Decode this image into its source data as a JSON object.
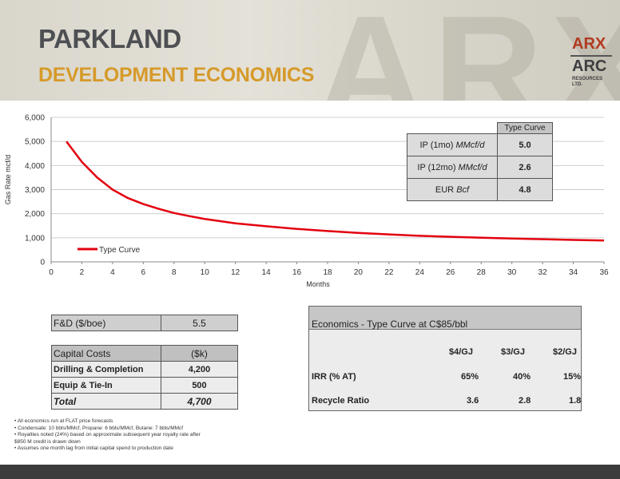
{
  "header": {
    "title": "PARKLAND",
    "subtitle": "DEVELOPMENT ECONOMICS",
    "logo_top": "ARX",
    "logo_main": "ARC",
    "logo_small": "RESOURCES LTD."
  },
  "chart_data": {
    "type": "line",
    "xlabel": "Months",
    "ylabel": "Gas Rate mcf/d",
    "xlim": [
      0,
      36
    ],
    "ylim": [
      0,
      6000
    ],
    "x_ticks": [
      "0",
      "2",
      "4",
      "6",
      "8",
      "10",
      "12",
      "14",
      "16",
      "18",
      "20",
      "22",
      "24",
      "26",
      "28",
      "30",
      "32",
      "34",
      "36"
    ],
    "y_ticks": [
      "0",
      "1,000",
      "2,000",
      "3,000",
      "4,000",
      "5,000",
      "6,000"
    ],
    "grid": "horizontal",
    "legend": "bottom-left",
    "series": [
      {
        "name": "Type Curve",
        "color": "#e3000f",
        "x": [
          1,
          2,
          3,
          4,
          5,
          6,
          7,
          8,
          9,
          10,
          12,
          14,
          16,
          18,
          20,
          22,
          24,
          26,
          28,
          30,
          32,
          34,
          36
        ],
        "y": [
          5000,
          4150,
          3500,
          3000,
          2650,
          2400,
          2200,
          2030,
          1900,
          1780,
          1600,
          1480,
          1370,
          1280,
          1200,
          1140,
          1080,
          1040,
          1000,
          970,
          940,
          910,
          890
        ]
      }
    ]
  },
  "type_curve_table": {
    "header": "Type Curve",
    "rows": [
      {
        "label": "IP (1mo)",
        "unit": "MMcf/d",
        "value": "5.0"
      },
      {
        "label": "IP (12mo)",
        "unit": "MMcf/d",
        "value": "2.6"
      },
      {
        "label": "EUR",
        "unit": "Bcf",
        "value": "4.8"
      }
    ]
  },
  "fd_table": {
    "label": "F&D ($/boe)",
    "value": "5.5"
  },
  "capital_table": {
    "header": {
      "label": "Capital Costs",
      "unit": "($k)"
    },
    "rows": [
      {
        "label": "Drilling & Completion",
        "value": "4,200"
      },
      {
        "label": "Equip & Tie-In",
        "value": "500"
      }
    ],
    "total": {
      "label": "Total",
      "value": "4,700"
    }
  },
  "economics": {
    "title": "Economics - Type Curve at C$85/bbl",
    "columns": [
      "$4/GJ",
      "$3/GJ",
      "$2/GJ"
    ],
    "irr": {
      "label": "IRR (% AT)",
      "values": [
        "65%",
        "40%",
        "15%"
      ]
    },
    "recycle": {
      "label": "Recycle Ratio",
      "values": [
        "3.6",
        "2.8",
        "1.8"
      ]
    }
  },
  "notes": [
    "• All economics run at FLAT price forecasts",
    "• Condensate: 10 bbls/MMcf, Propane: 6 bbls/MMcf, Butane: 7 bbls/MMcf",
    "• Royalties noted (24%) based on approximate subsequent year royalty rate after",
    "  $850 M credit is drawn down",
    "• Assumes one month lag from initial capital spend to production date"
  ]
}
